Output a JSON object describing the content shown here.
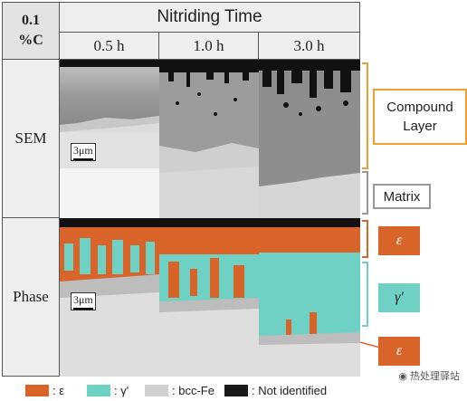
{
  "table": {
    "corner_line1": "0.1",
    "corner_line2": "%C",
    "header": "Nitriding Time",
    "columns": [
      "0.5 h",
      "1.0 h",
      "3.0 h"
    ],
    "rows": [
      "SEM",
      "Phase"
    ]
  },
  "scale_bar_label": "3μm",
  "annotations": {
    "compound_layer": "Compound Layer",
    "matrix": "Matrix",
    "epsilon": "ε",
    "gamma_prime": "γ'",
    "epsilon_lower": "ε"
  },
  "legend": [
    {
      "label": ": ε",
      "color": "#d8642a"
    },
    {
      "label": ": γ'",
      "color": "#6fd0c4"
    },
    {
      "label": ": bcc-Fe",
      "color": "#d0d0d0"
    },
    {
      "label": ": Not identified",
      "color": "#1a1a1a"
    }
  ],
  "watermark": "热处理驿站",
  "colors": {
    "compound_bracket": "#f0a030",
    "matrix_bracket": "#999999",
    "epsilon": "#d8642a",
    "gamma": "#6fd0c4"
  }
}
